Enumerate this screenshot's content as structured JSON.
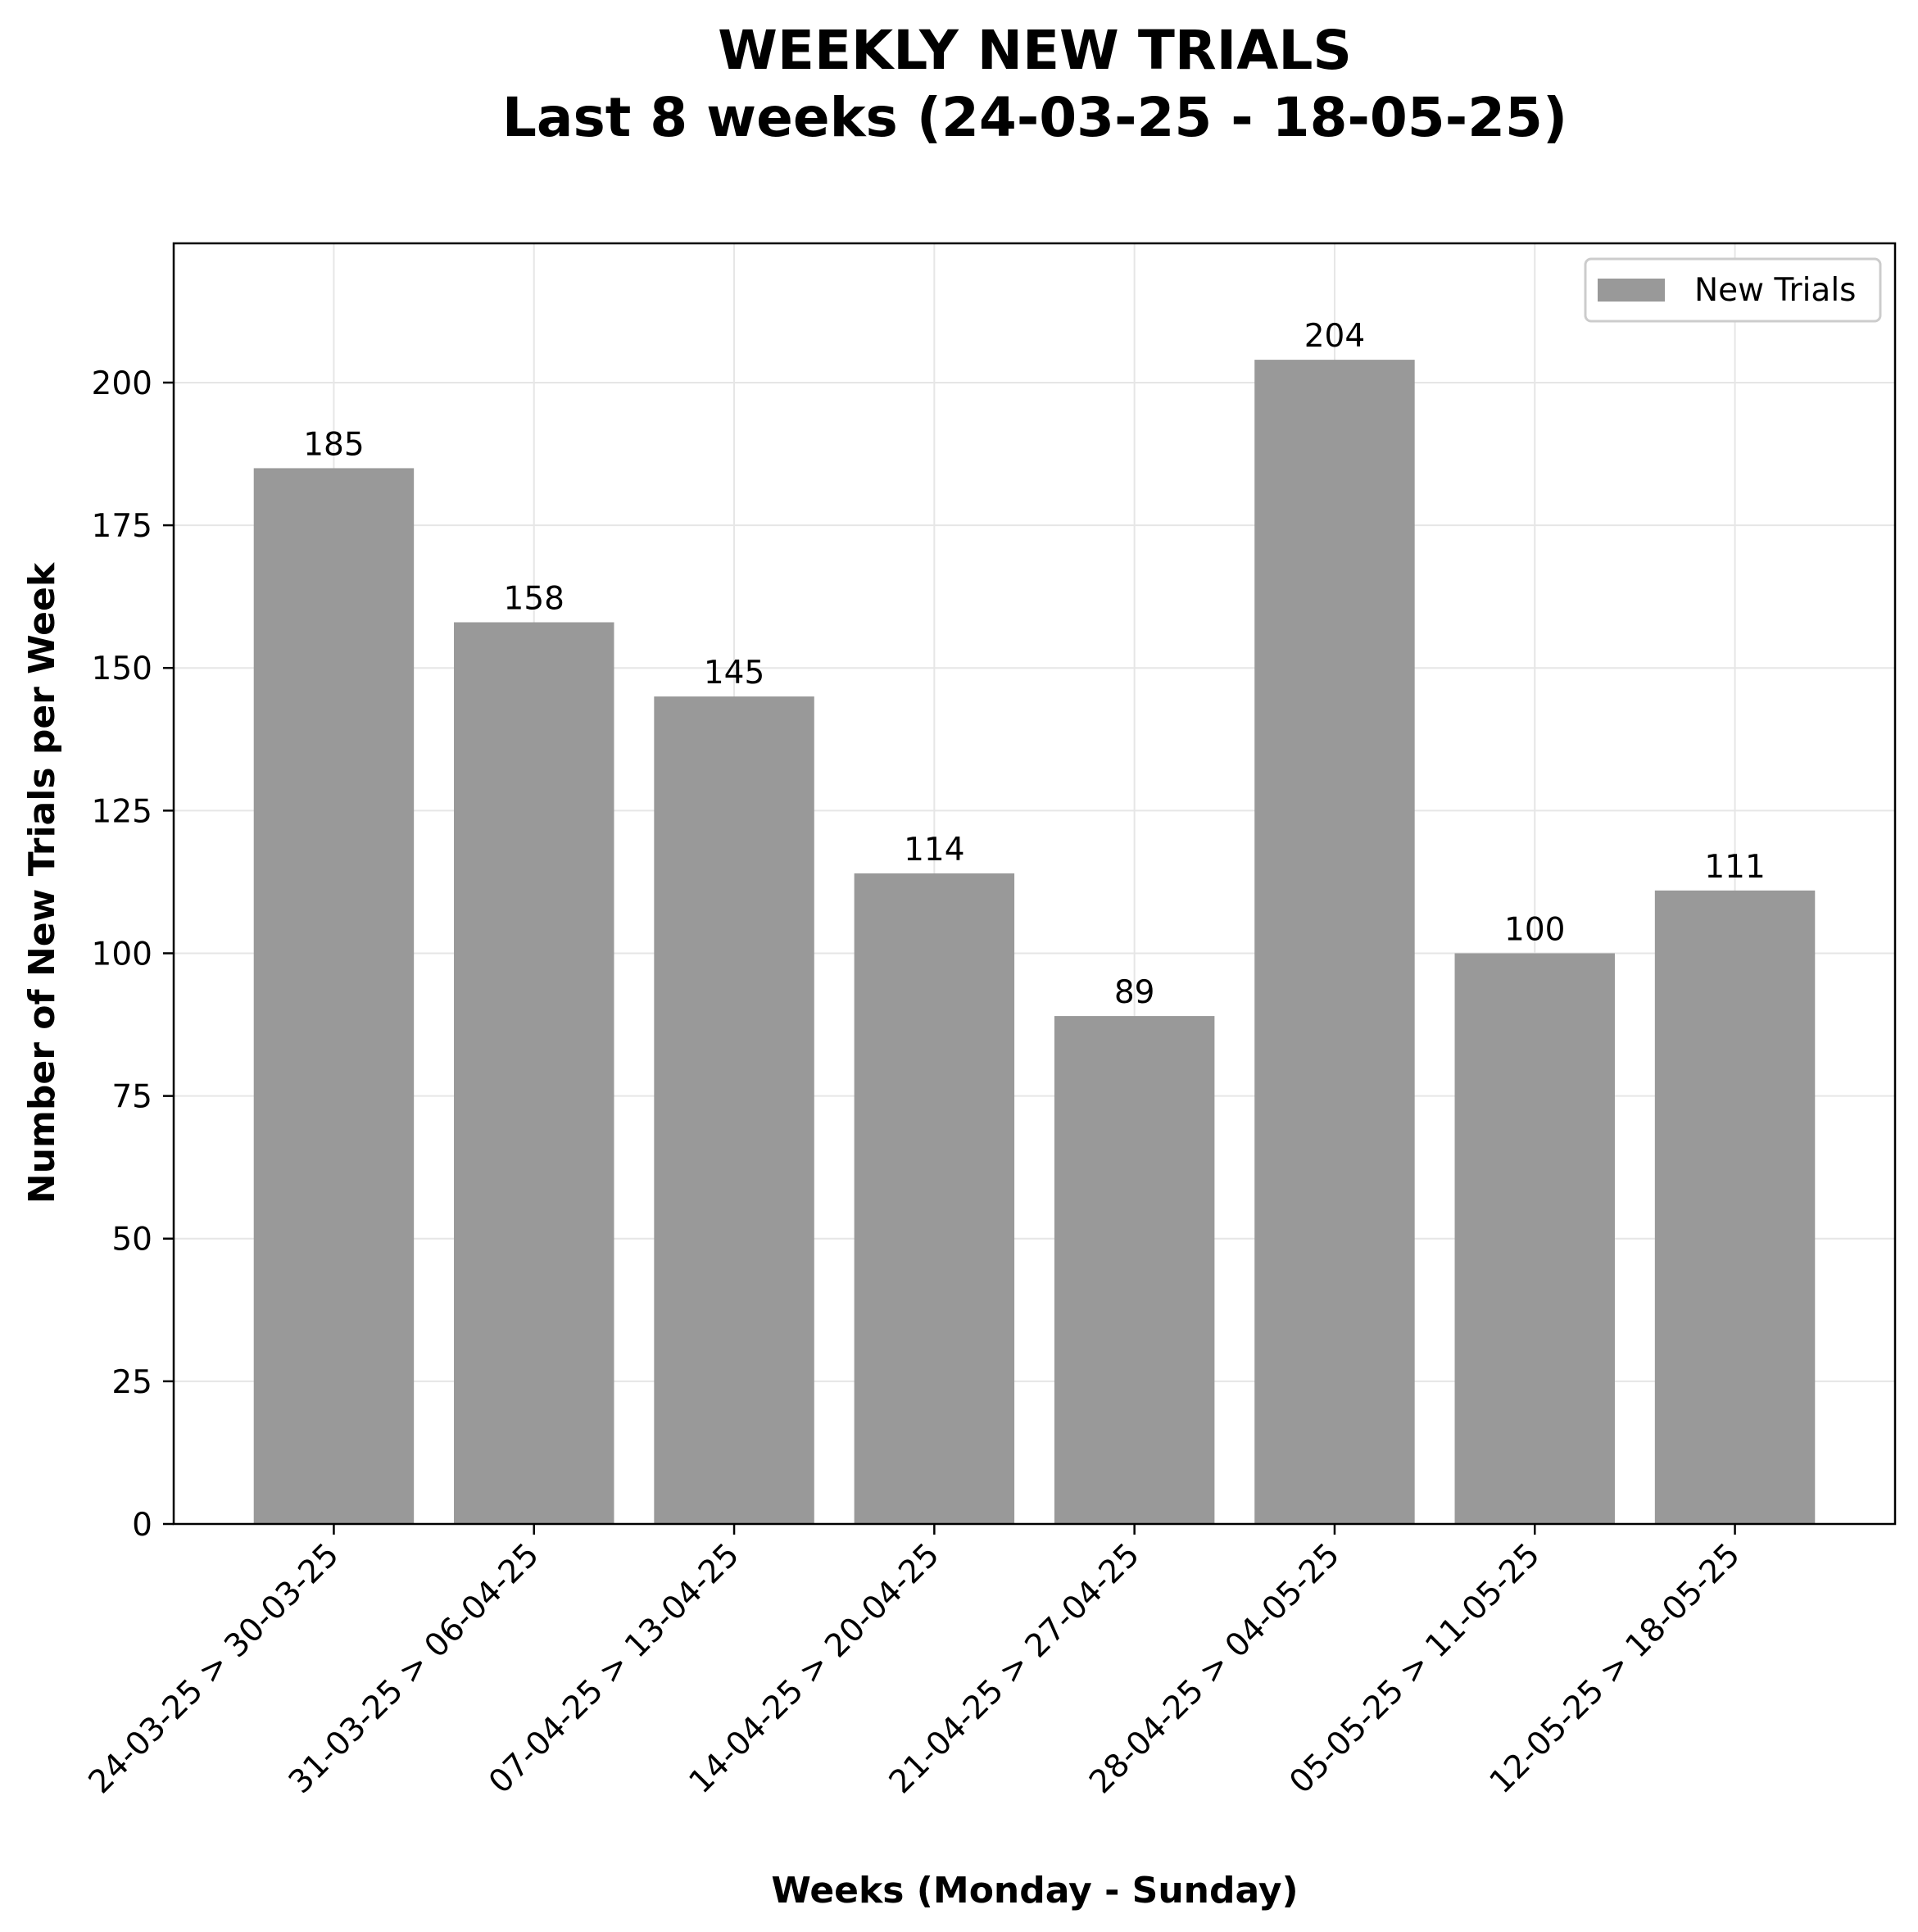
{
  "chart_data": {
    "type": "bar",
    "title": "WEEKLY NEW TRIALS",
    "subtitle": "Last 8 weeks (24-03-25 - 18-05-25)",
    "xlabel": "Weeks (Monday - Sunday)",
    "ylabel": "Number of New Trials per Week",
    "categories": [
      "24-03-25 > 30-03-25",
      "31-03-25 > 06-04-25",
      "07-04-25 > 13-04-25",
      "14-04-25 > 20-04-25",
      "21-04-25 > 27-04-25",
      "28-04-25 > 04-05-25",
      "05-05-25 > 11-05-25",
      "12-05-25 > 18-05-25"
    ],
    "series": [
      {
        "name": "New Trials",
        "values": [
          185,
          158,
          145,
          114,
          89,
          204,
          100,
          111
        ],
        "color": "#999999"
      }
    ],
    "ylim": [
      0,
      224.4
    ],
    "yticks": [
      0,
      25,
      50,
      75,
      100,
      125,
      150,
      175,
      200
    ],
    "grid": true,
    "legend": "top-right"
  }
}
